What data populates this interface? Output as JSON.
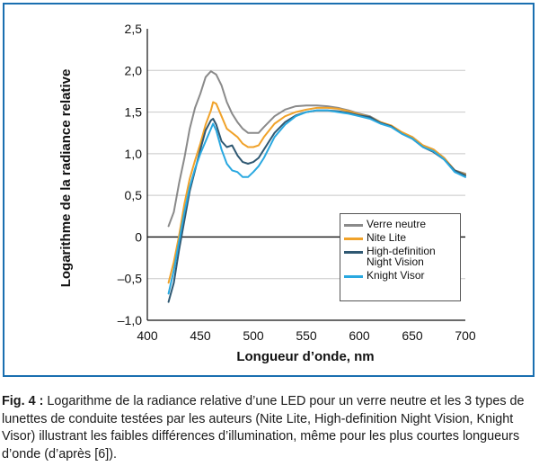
{
  "chart_data": {
    "type": "line",
    "xlabel": "Longueur d’onde, nm",
    "ylabel": "Logarithme de la radiance relative",
    "xlim": [
      400,
      700
    ],
    "ylim": [
      -1.0,
      2.5
    ],
    "x_ticks": [
      "400",
      "450",
      "500",
      "550",
      "600",
      "650",
      "700"
    ],
    "y_ticks": [
      "2,5",
      "2,0",
      "1,5",
      "1,0",
      "0,5",
      "0",
      "–0,5",
      "–1,0"
    ],
    "grid": "horizontal",
    "legend_position": "bottom-right",
    "series": [
      {
        "name": "Verre neutre",
        "color": "#8a8a8a",
        "points": [
          [
            420,
            0.13
          ],
          [
            425,
            0.3
          ],
          [
            430,
            0.65
          ],
          [
            435,
            0.95
          ],
          [
            440,
            1.3
          ],
          [
            445,
            1.55
          ],
          [
            450,
            1.72
          ],
          [
            455,
            1.92
          ],
          [
            460,
            1.99
          ],
          [
            465,
            1.95
          ],
          [
            470,
            1.82
          ],
          [
            475,
            1.62
          ],
          [
            480,
            1.48
          ],
          [
            485,
            1.38
          ],
          [
            490,
            1.3
          ],
          [
            495,
            1.25
          ],
          [
            500,
            1.25
          ],
          [
            505,
            1.25
          ],
          [
            510,
            1.32
          ],
          [
            520,
            1.45
          ],
          [
            530,
            1.53
          ],
          [
            540,
            1.57
          ],
          [
            550,
            1.58
          ],
          [
            560,
            1.58
          ],
          [
            570,
            1.57
          ],
          [
            580,
            1.55
          ],
          [
            590,
            1.52
          ],
          [
            600,
            1.48
          ],
          [
            610,
            1.45
          ],
          [
            620,
            1.38
          ],
          [
            630,
            1.33
          ],
          [
            640,
            1.25
          ],
          [
            650,
            1.2
          ],
          [
            660,
            1.1
          ],
          [
            670,
            1.05
          ],
          [
            680,
            0.95
          ],
          [
            690,
            0.8
          ],
          [
            700,
            0.76
          ]
        ]
      },
      {
        "name": "Nite Lite",
        "color": "#f0a22a",
        "points": [
          [
            420,
            -0.55
          ],
          [
            425,
            -0.3
          ],
          [
            430,
            0.02
          ],
          [
            435,
            0.4
          ],
          [
            440,
            0.7
          ],
          [
            445,
            0.92
          ],
          [
            450,
            1.12
          ],
          [
            455,
            1.35
          ],
          [
            460,
            1.52
          ],
          [
            462,
            1.62
          ],
          [
            465,
            1.6
          ],
          [
            470,
            1.45
          ],
          [
            475,
            1.3
          ],
          [
            480,
            1.25
          ],
          [
            485,
            1.2
          ],
          [
            490,
            1.12
          ],
          [
            495,
            1.08
          ],
          [
            500,
            1.08
          ],
          [
            505,
            1.1
          ],
          [
            510,
            1.2
          ],
          [
            520,
            1.36
          ],
          [
            530,
            1.45
          ],
          [
            540,
            1.5
          ],
          [
            550,
            1.53
          ],
          [
            560,
            1.55
          ],
          [
            570,
            1.55
          ],
          [
            580,
            1.54
          ],
          [
            590,
            1.51
          ],
          [
            600,
            1.47
          ],
          [
            610,
            1.44
          ],
          [
            620,
            1.38
          ],
          [
            630,
            1.34
          ],
          [
            640,
            1.26
          ],
          [
            650,
            1.2
          ],
          [
            660,
            1.1
          ],
          [
            670,
            1.05
          ],
          [
            680,
            0.95
          ],
          [
            690,
            0.8
          ],
          [
            700,
            0.75
          ]
        ]
      },
      {
        "name": "High-definition\nNight Vision",
        "color": "#2f5872",
        "points": [
          [
            420,
            -0.78
          ],
          [
            425,
            -0.55
          ],
          [
            430,
            -0.15
          ],
          [
            435,
            0.2
          ],
          [
            440,
            0.55
          ],
          [
            445,
            0.8
          ],
          [
            450,
            1.05
          ],
          [
            455,
            1.28
          ],
          [
            460,
            1.4
          ],
          [
            462,
            1.42
          ],
          [
            465,
            1.35
          ],
          [
            470,
            1.15
          ],
          [
            475,
            1.08
          ],
          [
            480,
            1.1
          ],
          [
            485,
            0.98
          ],
          [
            490,
            0.9
          ],
          [
            495,
            0.88
          ],
          [
            500,
            0.9
          ],
          [
            505,
            0.95
          ],
          [
            510,
            1.05
          ],
          [
            520,
            1.25
          ],
          [
            530,
            1.38
          ],
          [
            540,
            1.46
          ],
          [
            550,
            1.5
          ],
          [
            560,
            1.52
          ],
          [
            570,
            1.52
          ],
          [
            580,
            1.51
          ],
          [
            590,
            1.49
          ],
          [
            600,
            1.46
          ],
          [
            610,
            1.44
          ],
          [
            620,
            1.37
          ],
          [
            630,
            1.33
          ],
          [
            640,
            1.24
          ],
          [
            650,
            1.18
          ],
          [
            660,
            1.08
          ],
          [
            670,
            1.02
          ],
          [
            680,
            0.93
          ],
          [
            690,
            0.8
          ],
          [
            700,
            0.74
          ]
        ]
      },
      {
        "name": "Knight Visor",
        "color": "#29a8e0",
        "points": [
          [
            420,
            -0.68
          ],
          [
            425,
            -0.4
          ],
          [
            430,
            -0.05
          ],
          [
            435,
            0.3
          ],
          [
            440,
            0.6
          ],
          [
            445,
            0.82
          ],
          [
            450,
            1.0
          ],
          [
            455,
            1.15
          ],
          [
            460,
            1.3
          ],
          [
            462,
            1.36
          ],
          [
            465,
            1.28
          ],
          [
            470,
            1.05
          ],
          [
            475,
            0.88
          ],
          [
            480,
            0.8
          ],
          [
            485,
            0.78
          ],
          [
            490,
            0.72
          ],
          [
            495,
            0.72
          ],
          [
            500,
            0.78
          ],
          [
            505,
            0.85
          ],
          [
            510,
            0.95
          ],
          [
            520,
            1.2
          ],
          [
            530,
            1.35
          ],
          [
            540,
            1.45
          ],
          [
            550,
            1.5
          ],
          [
            560,
            1.52
          ],
          [
            570,
            1.52
          ],
          [
            580,
            1.5
          ],
          [
            590,
            1.48
          ],
          [
            600,
            1.45
          ],
          [
            610,
            1.42
          ],
          [
            620,
            1.36
          ],
          [
            630,
            1.32
          ],
          [
            640,
            1.24
          ],
          [
            650,
            1.18
          ],
          [
            660,
            1.08
          ],
          [
            670,
            1.03
          ],
          [
            680,
            0.93
          ],
          [
            690,
            0.78
          ],
          [
            700,
            0.72
          ]
        ]
      }
    ]
  },
  "caption": {
    "label": "Fig. 4 :",
    "text": " Logarithme de la radiance relative d’une LED pour un verre neutre et les 3 types de lunettes de conduite testées par les auteurs (Nite Lite, High-definition Night Vision, Knight Visor) illustrant les faibles différences d’illumination, même pour les plus courtes longueurs d’onde (d’après [6])."
  }
}
